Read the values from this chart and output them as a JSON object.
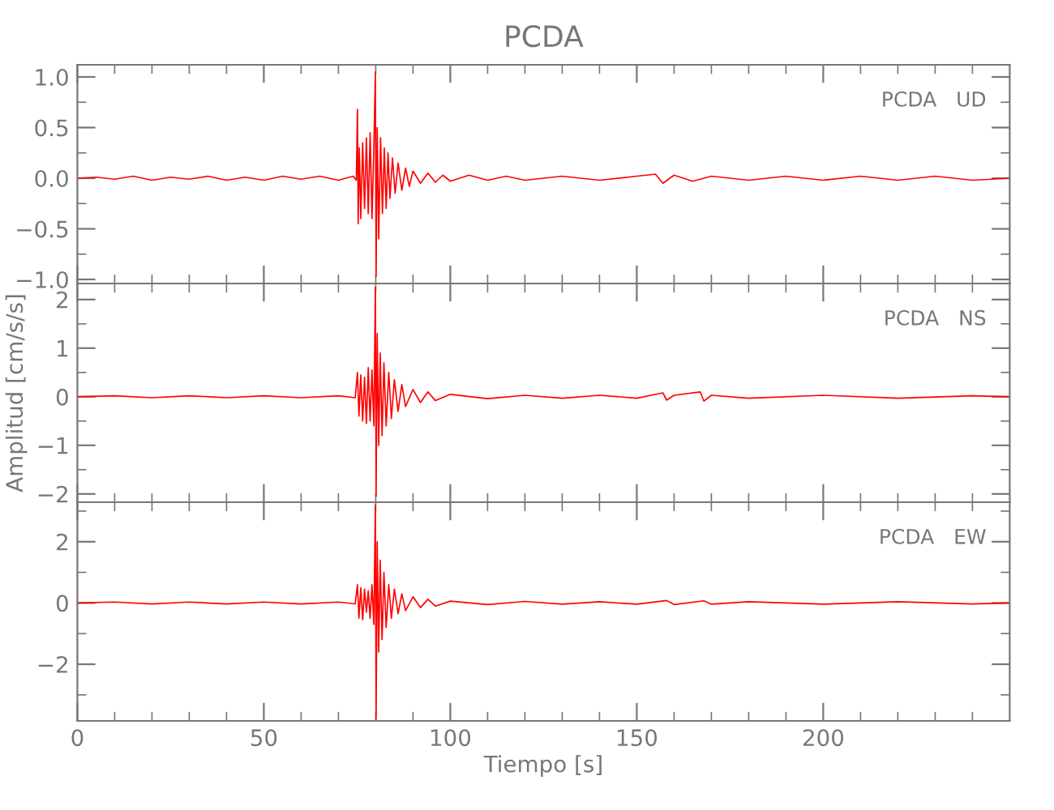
{
  "chart_data": [
    {
      "type": "line",
      "title": "PCDA",
      "annotations": [
        "PCDA   UD"
      ],
      "tick_labels": "y",
      "grid": false,
      "marker": "none",
      "line_style": "solid",
      "xlim": [
        0,
        250
      ],
      "ylim": [
        -1.04,
        1.12
      ],
      "xticks": [
        0,
        {
          "value": 10,
          "label": null
        },
        {
          "value": 20,
          "label": null
        },
        {
          "value": 30,
          "label": null
        },
        {
          "value": 40,
          "label": null
        },
        50,
        {
          "value": 60,
          "label": null
        },
        {
          "value": 70,
          "label": null
        },
        {
          "value": 80,
          "label": null
        },
        {
          "value": 90,
          "label": null
        },
        100,
        {
          "value": 110,
          "label": null
        },
        {
          "value": 120,
          "label": null
        },
        {
          "value": 130,
          "label": null
        },
        {
          "value": 140,
          "label": null
        },
        150,
        {
          "value": 160,
          "label": null
        },
        {
          "value": 170,
          "label": null
        },
        {
          "value": 180,
          "label": null
        },
        {
          "value": 190,
          "label": null
        },
        200,
        {
          "value": 210,
          "label": null
        },
        {
          "value": 220,
          "label": null
        },
        {
          "value": 230,
          "label": null
        },
        {
          "value": 240,
          "label": null
        }
      ],
      "yticks": [
        {
          "value": -1.0,
          "label": "−1.0"
        },
        {
          "value": -0.75,
          "label": null
        },
        {
          "value": -0.5,
          "label": "−0.5"
        },
        {
          "value": -0.25,
          "label": null
        },
        {
          "value": 0.0,
          "label": "0.0"
        },
        {
          "value": 0.25,
          "label": null
        },
        {
          "value": 0.5,
          "label": "0.5"
        },
        {
          "value": 0.75,
          "label": null
        },
        {
          "value": 1.0,
          "label": "1.0"
        }
      ],
      "series": [
        {
          "color": "#ff0000",
          "x": [
            0,
            5,
            10,
            15,
            20,
            25,
            30,
            35,
            40,
            45,
            50,
            55,
            60,
            65,
            70,
            74,
            74.8,
            75.1,
            75.3,
            75.6,
            76,
            76.5,
            77,
            77.5,
            78,
            78.5,
            79,
            79.5,
            79.9,
            80.1,
            80.4,
            80.8,
            81.3,
            81.8,
            82.3,
            82.8,
            83.3,
            83.8,
            84.5,
            85.2,
            86,
            87,
            88,
            89,
            90,
            92,
            94,
            96,
            98,
            100,
            105,
            110,
            115,
            120,
            130,
            140,
            150,
            155,
            157,
            160,
            165,
            170,
            180,
            190,
            200,
            210,
            220,
            230,
            240,
            250
          ],
          "values": [
            0,
            0.01,
            -0.01,
            0.02,
            -0.02,
            0.01,
            -0.01,
            0.02,
            -0.02,
            0.01,
            -0.02,
            0.02,
            -0.01,
            0.02,
            -0.02,
            0.02,
            -0.02,
            0.68,
            -0.45,
            0.3,
            -0.4,
            0.35,
            -0.3,
            0.4,
            -0.35,
            0.45,
            -0.4,
            0.3,
            1.05,
            -0.97,
            0.5,
            -0.6,
            0.4,
            -0.35,
            0.3,
            -0.3,
            0.25,
            -0.2,
            0.2,
            -0.15,
            0.15,
            -0.12,
            0.1,
            -0.08,
            0.07,
            -0.05,
            0.05,
            -0.04,
            0.03,
            -0.03,
            0.03,
            -0.02,
            0.02,
            -0.02,
            0.02,
            -0.02,
            0.02,
            0.04,
            -0.05,
            0.03,
            -0.03,
            0.02,
            -0.02,
            0.02,
            -0.02,
            0.02,
            -0.02,
            0.02,
            -0.02,
            0
          ]
        }
      ]
    },
    {
      "type": "line",
      "ylabel": "Amplitud [cm/s/s]",
      "annotations": [
        "PCDA   NS"
      ],
      "tick_labels": "y",
      "grid": false,
      "marker": "none",
      "line_style": "solid",
      "xlim": [
        0,
        250
      ],
      "ylim": [
        -2.17,
        2.33
      ],
      "xticks": [
        0,
        {
          "value": 10,
          "label": null
        },
        {
          "value": 20,
          "label": null
        },
        {
          "value": 30,
          "label": null
        },
        {
          "value": 40,
          "label": null
        },
        50,
        {
          "value": 60,
          "label": null
        },
        {
          "value": 70,
          "label": null
        },
        {
          "value": 80,
          "label": null
        },
        {
          "value": 90,
          "label": null
        },
        100,
        {
          "value": 110,
          "label": null
        },
        {
          "value": 120,
          "label": null
        },
        {
          "value": 130,
          "label": null
        },
        {
          "value": 140,
          "label": null
        },
        150,
        {
          "value": 160,
          "label": null
        },
        {
          "value": 170,
          "label": null
        },
        {
          "value": 180,
          "label": null
        },
        {
          "value": 190,
          "label": null
        },
        200,
        {
          "value": 210,
          "label": null
        },
        {
          "value": 220,
          "label": null
        },
        {
          "value": 230,
          "label": null
        },
        {
          "value": 240,
          "label": null
        }
      ],
      "yticks": [
        {
          "value": -2,
          "label": "−2"
        },
        {
          "value": -1.5,
          "label": null
        },
        {
          "value": -1,
          "label": "−1"
        },
        {
          "value": -0.5,
          "label": null
        },
        0,
        {
          "value": 0.5,
          "label": null
        },
        1,
        {
          "value": 1.5,
          "label": null
        },
        2
      ],
      "series": [
        {
          "color": "#ff0000",
          "x": [
            0,
            10,
            20,
            30,
            40,
            50,
            60,
            70,
            74.5,
            75.1,
            75.5,
            76,
            76.5,
            77,
            77.5,
            78,
            78.5,
            79,
            79.5,
            79.9,
            80.1,
            80.4,
            80.8,
            81.2,
            81.7,
            82.2,
            82.8,
            83.5,
            84.2,
            85,
            86,
            87,
            88,
            90,
            92,
            94,
            96,
            100,
            110,
            120,
            130,
            140,
            150,
            157,
            158,
            160,
            167,
            168,
            170,
            180,
            200,
            220,
            240,
            250
          ],
          "values": [
            0,
            0.02,
            -0.02,
            0.02,
            -0.02,
            0.02,
            -0.02,
            0.02,
            -0.02,
            0.5,
            -0.4,
            0.45,
            -0.5,
            0.4,
            -0.55,
            0.6,
            -0.5,
            0.55,
            -0.6,
            2.25,
            -2.05,
            1.3,
            -1.0,
            0.9,
            -0.8,
            0.7,
            -0.6,
            0.5,
            -0.45,
            0.35,
            -0.3,
            0.25,
            -0.2,
            0.15,
            -0.12,
            0.1,
            -0.08,
            0.05,
            -0.04,
            0.03,
            -0.03,
            0.03,
            -0.03,
            0.08,
            -0.07,
            0.03,
            0.1,
            -0.09,
            0.03,
            -0.03,
            0.03,
            -0.03,
            0.02,
            0
          ]
        }
      ]
    },
    {
      "type": "line",
      "xlabel": "Tiempo [s]",
      "annotations": [
        "PCDA   EW"
      ],
      "grid": false,
      "marker": "none",
      "line_style": "solid",
      "xlim": [
        0,
        250
      ],
      "ylim": [
        -3.85,
        3.29
      ],
      "xticks": [
        0,
        {
          "value": 10,
          "label": null
        },
        {
          "value": 20,
          "label": null
        },
        {
          "value": 30,
          "label": null
        },
        {
          "value": 40,
          "label": null
        },
        50,
        {
          "value": 60,
          "label": null
        },
        {
          "value": 70,
          "label": null
        },
        {
          "value": 80,
          "label": null
        },
        {
          "value": 90,
          "label": null
        },
        100,
        {
          "value": 110,
          "label": null
        },
        {
          "value": 120,
          "label": null
        },
        {
          "value": 130,
          "label": null
        },
        {
          "value": 140,
          "label": null
        },
        150,
        {
          "value": 160,
          "label": null
        },
        {
          "value": 170,
          "label": null
        },
        {
          "value": 180,
          "label": null
        },
        {
          "value": 190,
          "label": null
        },
        200,
        {
          "value": 210,
          "label": null
        },
        {
          "value": 220,
          "label": null
        },
        {
          "value": 230,
          "label": null
        },
        {
          "value": 240,
          "label": null
        }
      ],
      "yticks": [
        {
          "value": -3,
          "label": null
        },
        {
          "value": -2,
          "label": "−2"
        },
        {
          "value": -1,
          "label": null
        },
        0,
        {
          "value": 1,
          "label": null
        },
        2,
        {
          "value": 3,
          "label": null
        }
      ],
      "series": [
        {
          "color": "#ff0000",
          "x": [
            0,
            10,
            20,
            30,
            40,
            50,
            60,
            70,
            74.5,
            75.1,
            75.5,
            76,
            76.5,
            77,
            77.5,
            78,
            78.5,
            79,
            79.5,
            79.9,
            80.1,
            80.4,
            80.8,
            81.2,
            81.7,
            82.2,
            82.8,
            83.5,
            84.2,
            85,
            86,
            87,
            88,
            90,
            92,
            94,
            96,
            100,
            110,
            120,
            130,
            140,
            150,
            158,
            160,
            168,
            170,
            180,
            200,
            220,
            240,
            250
          ],
          "values": [
            0,
            0.03,
            -0.03,
            0.03,
            -0.03,
            0.03,
            -0.03,
            0.03,
            -0.03,
            0.6,
            -0.5,
            0.5,
            -0.55,
            0.45,
            -0.3,
            0.4,
            -0.5,
            0.6,
            -0.7,
            3.2,
            -3.8,
            2.0,
            -1.6,
            1.4,
            -1.2,
            1.0,
            -0.8,
            0.6,
            -0.5,
            0.45,
            -0.35,
            0.3,
            -0.25,
            0.2,
            -0.15,
            0.12,
            -0.1,
            0.06,
            -0.05,
            0.05,
            -0.04,
            0.04,
            -0.04,
            0.08,
            -0.05,
            0.07,
            -0.04,
            0.04,
            -0.04,
            0.04,
            -0.03,
            0
          ]
        }
      ]
    }
  ]
}
